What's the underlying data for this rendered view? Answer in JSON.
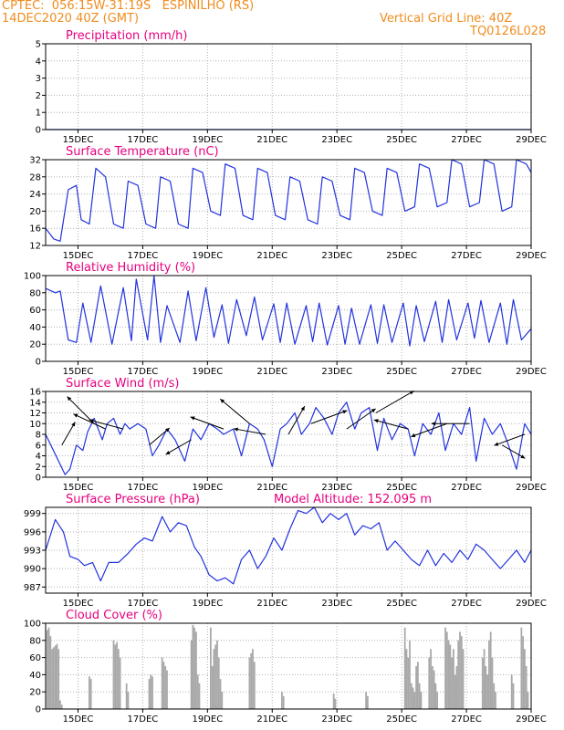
{
  "header": {
    "line1": "CPTEC:  056:15W-31:19S   ESPINILHO (RS)",
    "line2": "14DEC2020 40Z (GMT)",
    "grid_note": "Vertical Grid Line: 40Z",
    "model_id": "TQ0126L028"
  },
  "colors": {
    "header": "#f08c1e",
    "title": "#e6007e",
    "line": "#2233dd",
    "bar": "#a8a8a8",
    "grid": "#b0b0b0"
  },
  "chart_data": [
    {
      "id": "precip",
      "type": "line",
      "title": "Precipitation (mm/h)",
      "ylim": [
        0,
        5
      ],
      "yticks": [
        0,
        1,
        2,
        3,
        4,
        5
      ],
      "x_range_days": [
        0,
        15
      ],
      "xtick_days": [
        1,
        3,
        5,
        7,
        9,
        11,
        13,
        15
      ],
      "xtick_labels": [
        "15DEC",
        "17DEC",
        "19DEC",
        "21DEC",
        "23DEC",
        "25DEC",
        "27DEC",
        "29DEC"
      ],
      "x": [
        0,
        15
      ],
      "values": [
        0,
        0
      ]
    },
    {
      "id": "temp",
      "type": "line",
      "title": "Surface Temperature (nC)",
      "ylim": [
        12,
        32
      ],
      "yticks": [
        12,
        16,
        20,
        24,
        28,
        32
      ],
      "x_range_days": [
        0,
        15
      ],
      "xtick_days": [
        1,
        3,
        5,
        7,
        9,
        11,
        13,
        15
      ],
      "xtick_labels": [
        "15DEC",
        "17DEC",
        "19DEC",
        "21DEC",
        "23DEC",
        "25DEC",
        "27DEC",
        "29DEC"
      ],
      "x": [
        0.0,
        0.25,
        0.45,
        0.7,
        0.95,
        1.1,
        1.35,
        1.55,
        1.85,
        2.1,
        2.4,
        2.55,
        2.85,
        3.1,
        3.4,
        3.55,
        3.85,
        4.1,
        4.4,
        4.55,
        4.85,
        5.1,
        5.4,
        5.55,
        5.85,
        6.1,
        6.4,
        6.55,
        6.85,
        7.1,
        7.4,
        7.55,
        7.85,
        8.1,
        8.4,
        8.55,
        8.85,
        9.1,
        9.4,
        9.55,
        9.85,
        10.1,
        10.4,
        10.55,
        10.85,
        11.1,
        11.4,
        11.55,
        11.85,
        12.1,
        12.4,
        12.55,
        12.85,
        13.1,
        13.4,
        13.55,
        13.85,
        14.1,
        14.4,
        14.55,
        14.85,
        15.0
      ],
      "values": [
        16,
        13.5,
        13,
        25,
        26,
        18,
        17,
        30,
        28,
        17,
        16,
        27,
        26,
        17,
        16,
        28,
        27,
        17,
        16,
        30,
        29,
        20,
        19,
        31,
        30,
        19,
        18,
        30,
        29,
        19,
        18,
        28,
        27,
        18,
        17,
        28,
        27,
        19,
        18,
        30,
        29,
        20,
        19,
        30,
        29,
        20,
        21,
        31,
        30,
        21,
        22,
        32,
        31,
        21,
        22,
        32,
        31,
        20,
        21,
        32,
        31,
        29
      ]
    },
    {
      "id": "rh",
      "type": "line",
      "title": "Relative Humidity (%)",
      "ylim": [
        0,
        100
      ],
      "yticks": [
        0,
        20,
        40,
        60,
        80,
        100
      ],
      "x_range_days": [
        0,
        15
      ],
      "xtick_days": [
        1,
        3,
        5,
        7,
        9,
        11,
        13,
        15
      ],
      "xtick_labels": [
        "15DEC",
        "17DEC",
        "19DEC",
        "21DEC",
        "23DEC",
        "25DEC",
        "27DEC",
        "29DEC"
      ],
      "x": [
        0.0,
        0.3,
        0.45,
        0.7,
        0.95,
        1.15,
        1.4,
        1.7,
        2.05,
        2.4,
        2.65,
        2.8,
        3.15,
        3.35,
        3.55,
        3.75,
        4.15,
        4.4,
        4.65,
        4.95,
        5.2,
        5.45,
        5.65,
        5.9,
        6.2,
        6.45,
        6.7,
        7.05,
        7.25,
        7.45,
        7.7,
        8.05,
        8.25,
        8.45,
        8.7,
        9.05,
        9.25,
        9.45,
        9.7,
        10.05,
        10.25,
        10.45,
        10.7,
        11.05,
        11.25,
        11.45,
        11.7,
        12.05,
        12.25,
        12.45,
        12.7,
        13.05,
        13.25,
        13.45,
        13.7,
        14.05,
        14.25,
        14.45,
        14.7,
        15.0
      ],
      "values": [
        85,
        80,
        82,
        25,
        22,
        68,
        22,
        88,
        20,
        86,
        24,
        96,
        25,
        100,
        22,
        65,
        22,
        82,
        24,
        86,
        28,
        66,
        21,
        72,
        30,
        75,
        25,
        67,
        22,
        68,
        20,
        65,
        23,
        68,
        19,
        65,
        20,
        62,
        20,
        66,
        21,
        66,
        22,
        68,
        18,
        65,
        23,
        70,
        22,
        72,
        25,
        68,
        27,
        71,
        22,
        68,
        20,
        72,
        25,
        38
      ]
    },
    {
      "id": "wind",
      "type": "line",
      "title": "Surface Wind (m/s)",
      "ylim": [
        0,
        16
      ],
      "yticks": [
        0,
        2,
        4,
        6,
        8,
        10,
        12,
        14,
        16
      ],
      "x_range_days": [
        0,
        15
      ],
      "xtick_days": [
        1,
        3,
        5,
        7,
        9,
        11,
        13,
        15
      ],
      "xtick_labels": [
        "15DEC",
        "17DEC",
        "19DEC",
        "21DEC",
        "23DEC",
        "25DEC",
        "27DEC",
        "29DEC"
      ],
      "x": [
        0.0,
        0.4,
        0.6,
        0.75,
        0.95,
        1.15,
        1.3,
        1.5,
        1.75,
        1.9,
        2.1,
        2.3,
        2.45,
        2.6,
        2.85,
        3.1,
        3.3,
        3.5,
        3.75,
        4.0,
        4.3,
        4.55,
        4.8,
        5.05,
        5.3,
        5.5,
        5.8,
        6.05,
        6.3,
        6.55,
        6.75,
        7.0,
        7.25,
        7.45,
        7.7,
        7.9,
        8.15,
        8.35,
        8.6,
        8.85,
        9.05,
        9.3,
        9.55,
        9.75,
        10.0,
        10.25,
        10.45,
        10.7,
        10.95,
        11.2,
        11.4,
        11.65,
        11.9,
        12.15,
        12.35,
        12.6,
        12.85,
        13.1,
        13.3,
        13.55,
        13.8,
        14.05,
        14.3,
        14.55,
        14.8,
        15.0
      ],
      "values": [
        8,
        3,
        0.5,
        1.5,
        6,
        5,
        8.5,
        11,
        7,
        10,
        11,
        8,
        10,
        9,
        10,
        9,
        4,
        6,
        9,
        7,
        3,
        9,
        7,
        10,
        9,
        8,
        9,
        4,
        10,
        9,
        7,
        2,
        9,
        10,
        12,
        8,
        10,
        13,
        11,
        8,
        12,
        14,
        9,
        12,
        13,
        5,
        11,
        7,
        10,
        9,
        4,
        10,
        8,
        12,
        5,
        10,
        8,
        13,
        3,
        11,
        8,
        10,
        6,
        1.5,
        10,
        8
      ]
    },
    {
      "id": "pressure",
      "type": "line",
      "title": "Surface Pressure (hPa)",
      "annotation": "Model Altitude: 152.095 m",
      "ylim": [
        986,
        1000
      ],
      "yticks": [
        987,
        990,
        993,
        996,
        999
      ],
      "x_range_days": [
        0,
        15
      ],
      "xtick_days": [
        1,
        3,
        5,
        7,
        9,
        11,
        13,
        15
      ],
      "xtick_labels": [
        "15DEC",
        "17DEC",
        "19DEC",
        "21DEC",
        "23DEC",
        "25DEC",
        "27DEC",
        "29DEC"
      ],
      "x": [
        0.0,
        0.3,
        0.55,
        0.75,
        1.0,
        1.2,
        1.45,
        1.7,
        1.95,
        2.25,
        2.55,
        2.8,
        3.05,
        3.3,
        3.6,
        3.85,
        4.1,
        4.35,
        4.6,
        4.8,
        5.05,
        5.3,
        5.55,
        5.8,
        6.05,
        6.3,
        6.55,
        6.8,
        7.05,
        7.3,
        7.55,
        7.8,
        8.05,
        8.3,
        8.55,
        8.8,
        9.05,
        9.3,
        9.55,
        9.8,
        10.05,
        10.3,
        10.55,
        10.8,
        11.05,
        11.3,
        11.55,
        11.8,
        12.05,
        12.3,
        12.55,
        12.8,
        13.05,
        13.3,
        13.55,
        13.8,
        14.05,
        14.3,
        14.55,
        14.8,
        15.0
      ],
      "values": [
        993,
        998,
        996,
        992,
        991.5,
        990.5,
        991,
        988,
        991,
        991,
        992.5,
        994,
        995,
        994.5,
        998.5,
        996,
        997.5,
        997,
        993.5,
        992,
        989,
        988,
        988.5,
        987.5,
        991.5,
        993,
        990,
        992,
        995,
        993,
        996.5,
        999.5,
        999,
        1000,
        997.5,
        999,
        998,
        999,
        995.5,
        997,
        996.5,
        997.5,
        993,
        994.5,
        993,
        991.5,
        990.5,
        993,
        990.5,
        992.5,
        991,
        993,
        991.5,
        994,
        993,
        991.5,
        990,
        991.5,
        993,
        991,
        993
      ]
    },
    {
      "id": "cloud",
      "type": "bar",
      "title": "Cloud Cover (%)",
      "ylim": [
        0,
        100
      ],
      "yticks": [
        0,
        20,
        40,
        60,
        80,
        100
      ],
      "x_range_days": [
        0,
        15
      ],
      "xtick_days": [
        1,
        3,
        5,
        7,
        9,
        11,
        13,
        15
      ],
      "xtick_labels": [
        "15DEC",
        "17DEC",
        "19DEC",
        "21DEC",
        "23DEC",
        "25DEC",
        "27DEC",
        "29DEC"
      ],
      "x": [
        0.05,
        0.1,
        0.15,
        0.2,
        0.25,
        0.3,
        0.35,
        0.4,
        0.45,
        0.5,
        1.35,
        1.4,
        2.1,
        2.15,
        2.2,
        2.25,
        2.3,
        2.5,
        2.55,
        3.2,
        3.25,
        3.3,
        3.6,
        3.65,
        3.7,
        3.75,
        4.5,
        4.55,
        4.6,
        4.65,
        4.7,
        4.75,
        5.1,
        5.15,
        5.2,
        5.25,
        5.3,
        5.35,
        5.4,
        5.45,
        6.3,
        6.35,
        6.4,
        6.45,
        7.3,
        7.35,
        8.9,
        8.95,
        9.9,
        9.95,
        11.1,
        11.15,
        11.2,
        11.25,
        11.3,
        11.35,
        11.4,
        11.45,
        11.5,
        11.55,
        11.6,
        11.85,
        11.9,
        11.95,
        12.0,
        12.05,
        12.1,
        12.35,
        12.4,
        12.45,
        12.5,
        12.55,
        12.6,
        12.65,
        12.7,
        12.75,
        12.8,
        12.85,
        12.9,
        13.5,
        13.55,
        13.6,
        13.65,
        13.7,
        13.75,
        13.8,
        13.85,
        13.9,
        14.4,
        14.45,
        14.7,
        14.75,
        14.8,
        14.85,
        14.9
      ],
      "values": [
        92,
        95,
        85,
        70,
        72,
        74,
        76,
        70,
        10,
        5,
        38,
        35,
        80,
        75,
        78,
        70,
        60,
        30,
        20,
        35,
        40,
        38,
        60,
        55,
        50,
        45,
        80,
        98,
        95,
        90,
        40,
        30,
        95,
        50,
        70,
        75,
        80,
        60,
        35,
        20,
        60,
        65,
        70,
        55,
        20,
        15,
        18,
        12,
        20,
        15,
        95,
        70,
        60,
        80,
        30,
        25,
        20,
        50,
        55,
        30,
        20,
        60,
        70,
        50,
        45,
        30,
        20,
        95,
        90,
        80,
        75,
        60,
        70,
        40,
        50,
        80,
        90,
        85,
        70,
        60,
        70,
        50,
        40,
        80,
        90,
        60,
        30,
        20,
        40,
        30,
        95,
        85,
        70,
        50,
        20
      ]
    }
  ],
  "wind_arrows": [
    {
      "day": 0.5,
      "speed": 6,
      "dir_deg": 60
    },
    {
      "day": 1.5,
      "speed": 10,
      "dir_deg": 135
    },
    {
      "day": 1.85,
      "speed": 9,
      "dir_deg": 155
    },
    {
      "day": 2.4,
      "speed": 9,
      "dir_deg": 165
    },
    {
      "day": 3.2,
      "speed": 6,
      "dir_deg": 40
    },
    {
      "day": 4.5,
      "speed": 7,
      "dir_deg": 210
    },
    {
      "day": 5.5,
      "speed": 9,
      "dir_deg": 160
    },
    {
      "day": 6.3,
      "speed": 10,
      "dir_deg": 140
    },
    {
      "day": 6.8,
      "speed": 8,
      "dir_deg": 170
    },
    {
      "day": 7.5,
      "speed": 8,
      "dir_deg": 60
    },
    {
      "day": 8.2,
      "speed": 10,
      "dir_deg": 20
    },
    {
      "day": 9.3,
      "speed": 9,
      "dir_deg": 35
    },
    {
      "day": 10.2,
      "speed": 12,
      "dir_deg": 30
    },
    {
      "day": 11.2,
      "speed": 9,
      "dir_deg": 165
    },
    {
      "day": 12.4,
      "speed": 10,
      "dir_deg": 200
    },
    {
      "day": 13.1,
      "speed": 10,
      "dir_deg": 180
    },
    {
      "day": 14.1,
      "speed": 6,
      "dir_deg": 330
    },
    {
      "day": 14.8,
      "speed": 8,
      "dir_deg": 200
    }
  ]
}
